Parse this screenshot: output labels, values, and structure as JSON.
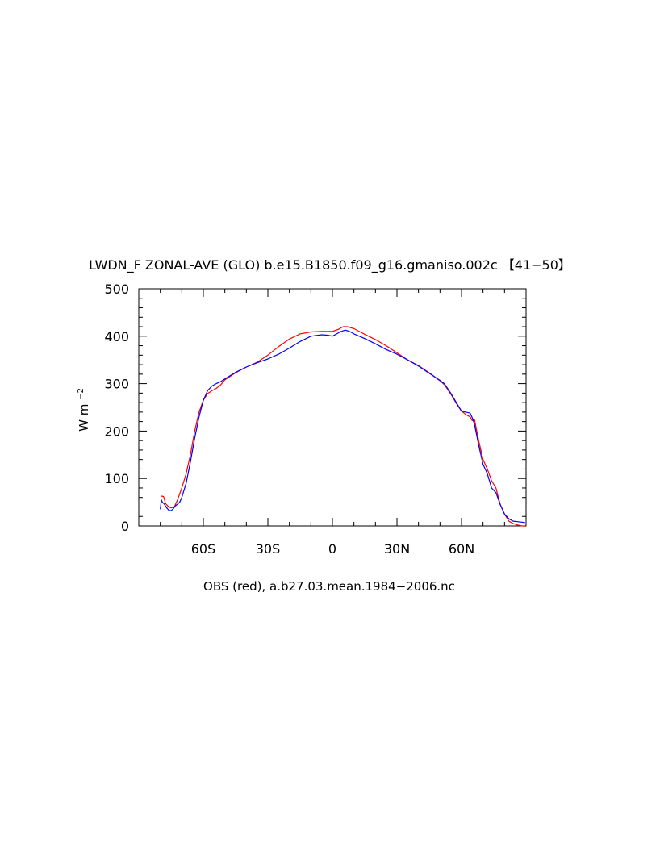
{
  "chart_data": {
    "type": "line",
    "title": "LWDN_F ZONAL-AVE (GLO) b.e15.B1850.f09_g16.gmaniso.002c 【41−50】",
    "xlabel": "OBS (red), a.b27.03.mean.1984−2006.nc",
    "ylabel": "W m",
    "ylabel_exp": "−2",
    "xlim": [
      -90,
      90
    ],
    "ylim": [
      0,
      500
    ],
    "x_ticks": [
      {
        "value": -60,
        "label": "60S"
      },
      {
        "value": -30,
        "label": "30S"
      },
      {
        "value": 0,
        "label": "0"
      },
      {
        "value": 30,
        "label": "30N"
      },
      {
        "value": 60,
        "label": "60N"
      }
    ],
    "y_ticks": [
      {
        "value": 0,
        "label": "0"
      },
      {
        "value": 100,
        "label": "100"
      },
      {
        "value": 200,
        "label": "200"
      },
      {
        "value": 300,
        "label": "300"
      },
      {
        "value": 400,
        "label": "400"
      },
      {
        "value": 500,
        "label": "500"
      }
    ],
    "grid": false,
    "series": [
      {
        "color": "#ff0000",
        "x": [
          -79.5,
          -78.5,
          -77.5,
          -76.5,
          -75,
          -73.5,
          -72,
          -70,
          -68,
          -66,
          -64,
          -62,
          -60,
          -58,
          -56,
          -54,
          -52,
          -50,
          -45,
          -40,
          -35,
          -30,
          -25,
          -20,
          -15,
          -10,
          -5,
          0,
          3,
          5,
          7,
          10,
          15,
          20,
          25,
          30,
          35,
          40,
          45,
          50,
          52,
          55,
          58,
          60,
          62,
          64,
          65,
          66,
          68,
          70,
          72,
          74,
          76,
          78,
          80,
          82,
          84,
          86,
          88,
          89.5
        ],
        "y": [
          63,
          62,
          47,
          42,
          38,
          40,
          55,
          80,
          110,
          150,
          200,
          240,
          265,
          279,
          285,
          290,
          297,
          308,
          323,
          335,
          345,
          360,
          378,
          394,
          405,
          409,
          410,
          410,
          415,
          420,
          420,
          416,
          404,
          393,
          380,
          365,
          350,
          338,
          323,
          306,
          298,
          278,
          255,
          242,
          235,
          230,
          222,
          225,
          180,
          140,
          120,
          95,
          80,
          45,
          25,
          10,
          5,
          2,
          0,
          0
        ]
      },
      {
        "color": "#0000ff",
        "x": [
          -80,
          -79.5,
          -79,
          -78,
          -77,
          -76,
          -75,
          -74,
          -73,
          -72,
          -71,
          -70,
          -68,
          -66,
          -64,
          -62,
          -60,
          -58,
          -56,
          -54,
          -52,
          -50,
          -45,
          -40,
          -35,
          -30,
          -25,
          -20,
          -15,
          -10,
          -5,
          -2,
          0,
          2,
          4,
          6,
          8,
          10,
          15,
          20,
          25,
          30,
          35,
          40,
          45,
          50,
          52,
          55,
          58,
          60,
          62,
          64,
          65,
          66,
          68,
          70,
          72,
          74,
          76,
          78,
          80,
          82,
          84,
          86,
          88,
          89.5
        ],
        "y": [
          35,
          55,
          50,
          45,
          38,
          33,
          32,
          36,
          42,
          46,
          50,
          60,
          90,
          135,
          185,
          230,
          265,
          285,
          295,
          300,
          304,
          310,
          324,
          335,
          344,
          352,
          362,
          375,
          389,
          400,
          403,
          402,
          400,
          405,
          410,
          413,
          410,
          405,
          395,
          384,
          372,
          362,
          350,
          337,
          322,
          307,
          300,
          280,
          257,
          242,
          240,
          238,
          228,
          215,
          170,
          130,
          110,
          80,
          70,
          45,
          25,
          15,
          10,
          9,
          8,
          7
        ]
      }
    ]
  }
}
